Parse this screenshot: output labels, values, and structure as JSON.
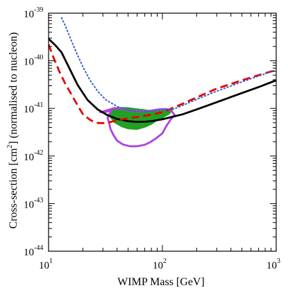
{
  "chart_data": {
    "type": "line",
    "xscale": "log",
    "yscale": "log",
    "xlim": [
      10,
      1000
    ],
    "ylim": [
      1e-44,
      1e-39
    ],
    "xlabel": "WIMP Mass [GeV]",
    "ylabel": {
      "before": "Cross-section [cm",
      "sup": "2",
      "after": "] (normalised to nucleon)"
    },
    "x_ticks": [
      {
        "value": 10,
        "base": "10",
        "exp": "1"
      },
      {
        "value": 100,
        "base": "10",
        "exp": "2"
      },
      {
        "value": 1000,
        "base": "10",
        "exp": "3"
      }
    ],
    "y_ticks": [
      {
        "value": 1e-44,
        "base": "10",
        "exp": "-44"
      },
      {
        "value": 1e-43,
        "base": "10",
        "exp": "-43"
      },
      {
        "value": 1e-42,
        "base": "10",
        "exp": "-42"
      },
      {
        "value": 1e-41,
        "base": "10",
        "exp": "-41"
      },
      {
        "value": 1e-40,
        "base": "10",
        "exp": "-40"
      },
      {
        "value": 1e-39,
        "base": "10",
        "exp": "-39"
      }
    ],
    "grid": false,
    "legend": "none",
    "series": [
      {
        "style": "solid",
        "color": "#000000",
        "width": 2.8,
        "points": [
          [
            10,
            2.9e-40
          ],
          [
            11.5,
            2.1e-40
          ],
          [
            13,
            1.5e-40
          ],
          [
            15,
            7.5e-41
          ],
          [
            18,
            3.1e-41
          ],
          [
            22,
            1.5e-41
          ],
          [
            27,
            9.5e-42
          ],
          [
            33,
            7.2e-42
          ],
          [
            40,
            6e-42
          ],
          [
            50,
            5.4e-42
          ],
          [
            60,
            5.2e-42
          ],
          [
            70,
            5.25e-42
          ],
          [
            80,
            5.4e-42
          ],
          [
            100,
            5.9e-42
          ],
          [
            150,
            7.5e-42
          ],
          [
            200,
            9.5e-42
          ],
          [
            300,
            1.35e-41
          ],
          [
            500,
            2.1e-41
          ],
          [
            700,
            2.8e-41
          ],
          [
            1000,
            3.9e-41
          ]
        ]
      },
      {
        "style": "dashed",
        "color": "#e60000",
        "width": 2.8,
        "points": [
          [
            10,
            2.2e-40
          ],
          [
            11,
            1.2e-40
          ],
          [
            12.5,
            5.8e-41
          ],
          [
            14,
            3.3e-41
          ],
          [
            16,
            1.9e-41
          ],
          [
            18,
            1.15e-41
          ],
          [
            20,
            7.6e-42
          ],
          [
            23,
            5.8e-42
          ],
          [
            26,
            5e-42
          ],
          [
            30,
            4.9e-42
          ],
          [
            35,
            5.2e-42
          ],
          [
            40,
            5.6e-42
          ],
          [
            50,
            6.2e-42
          ],
          [
            60,
            6.6e-42
          ],
          [
            70,
            7e-42
          ],
          [
            80,
            7.4e-42
          ],
          [
            100,
            8.3e-42
          ],
          [
            150,
            1.25e-41
          ],
          [
            200,
            1.7e-41
          ],
          [
            300,
            2.6e-41
          ],
          [
            500,
            3.9e-41
          ],
          [
            700,
            5e-41
          ],
          [
            1000,
            6.4e-41
          ]
        ]
      },
      {
        "style": "dotted",
        "color": "#3a5fd0",
        "width": 2.0,
        "points": [
          [
            13,
            8e-40
          ],
          [
            14,
            5.5e-40
          ],
          [
            16,
            2.5e-40
          ],
          [
            18,
            1.3e-40
          ],
          [
            20,
            7.5e-41
          ],
          [
            23,
            4e-41
          ],
          [
            27,
            2.3e-41
          ],
          [
            32,
            1.5e-41
          ],
          [
            40,
            1.1e-41
          ],
          [
            50,
            9.3e-42
          ],
          [
            60,
            8.7e-42
          ],
          [
            70,
            8.6e-42
          ],
          [
            80,
            8.7e-42
          ],
          [
            100,
            9.2e-42
          ],
          [
            130,
            1e-41
          ],
          [
            150,
            1.15e-41
          ],
          [
            200,
            1.55e-41
          ],
          [
            300,
            2.3e-41
          ],
          [
            500,
            3.6e-41
          ],
          [
            700,
            4.8e-41
          ],
          [
            1000,
            6.4e-41
          ]
        ]
      }
    ],
    "regions": [
      {
        "style": "filled",
        "color": "#22a022",
        "points": [
          [
            36,
            9.8e-42
          ],
          [
            42,
            1.05e-41
          ],
          [
            50,
            1.04e-41
          ],
          [
            60,
            9.8e-42
          ],
          [
            75,
            9.2e-42
          ],
          [
            90,
            8.9e-42
          ],
          [
            110,
            9.1e-42
          ],
          [
            125,
            9.6e-42
          ],
          [
            115,
            7.6e-42
          ],
          [
            100,
            6.3e-42
          ],
          [
            90,
            5.6e-42
          ],
          [
            80,
            4.6e-42
          ],
          [
            70,
            4e-42
          ],
          [
            60,
            3.6e-42
          ],
          [
            50,
            3.7e-42
          ],
          [
            44,
            4.1e-42
          ],
          [
            38,
            5e-42
          ],
          [
            35,
            6.4e-42
          ],
          [
            34.5,
            8e-42
          ]
        ]
      },
      {
        "style": "outline",
        "color": "#b040e0",
        "width": 2.8,
        "points": [
          [
            28,
            8.3e-42
          ],
          [
            33,
            8.6e-42
          ],
          [
            36,
            9.4e-42
          ],
          [
            34,
            7.5e-42
          ],
          [
            33,
            6.3e-42
          ],
          [
            34,
            5e-42
          ],
          [
            35,
            3.7e-42
          ],
          [
            37,
            2.8e-42
          ],
          [
            40,
            2.1e-42
          ],
          [
            45,
            1.75e-42
          ],
          [
            52,
            1.6e-42
          ],
          [
            60,
            1.6e-42
          ],
          [
            70,
            1.72e-42
          ],
          [
            78,
            1.95e-42
          ],
          [
            88,
            2.35e-42
          ],
          [
            100,
            3e-42
          ],
          [
            108,
            4.2e-42
          ],
          [
            118,
            5.8e-42
          ],
          [
            128,
            7.3e-42
          ],
          [
            120,
            8.9e-42
          ],
          [
            108,
            9.7e-42
          ],
          [
            95,
            9.6e-42
          ],
          [
            80,
            9e-42
          ],
          [
            70,
            8.6e-42
          ],
          [
            60,
            8.7e-42
          ],
          [
            52,
            9.1e-42
          ],
          [
            46,
            9.6e-42
          ],
          [
            41,
            1e-41
          ],
          [
            38,
            1.02e-41
          ],
          [
            34,
            9.4e-42
          ],
          [
            30,
            8.6e-42
          ],
          [
            28,
            8.3e-42
          ]
        ]
      }
    ]
  }
}
